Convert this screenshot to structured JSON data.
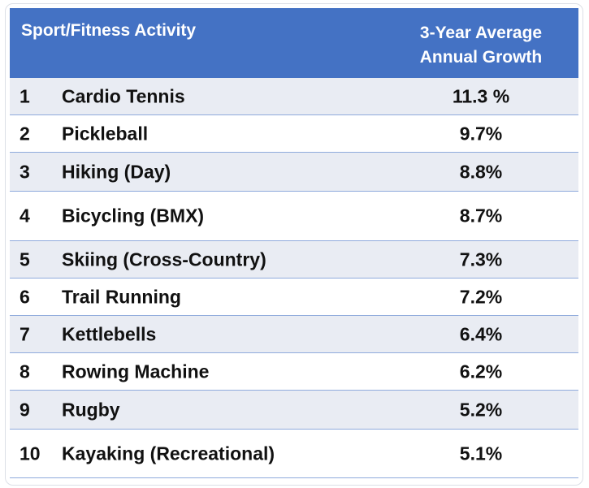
{
  "chart_data": {
    "type": "table",
    "columns": [
      "Sport/Fitness Activity",
      "3-Year Average Annual Growth"
    ],
    "header": {
      "col1": "Sport/Fitness Activity",
      "col2_line1": "3-Year Average",
      "col2_line2": "Annual Growth"
    },
    "rows": [
      {
        "rank": "1",
        "activity": "Cardio Tennis",
        "growth": "11.3 %",
        "value": 11.3
      },
      {
        "rank": "2",
        "activity": "Pickleball",
        "growth": "9.7%",
        "value": 9.7
      },
      {
        "rank": "3",
        "activity": "Hiking (Day)",
        "growth": "8.8%",
        "value": 8.8
      },
      {
        "rank": "4",
        "activity": "Bicycling (BMX)",
        "growth": "8.7%",
        "value": 8.7
      },
      {
        "rank": "5",
        "activity": "Skiing (Cross-Country)",
        "growth": "7.3%",
        "value": 7.3
      },
      {
        "rank": "6",
        "activity": "Trail Running",
        "growth": "7.2%",
        "value": 7.2
      },
      {
        "rank": "7",
        "activity": "Kettlebells",
        "growth": "6.4%",
        "value": 6.4
      },
      {
        "rank": "8",
        "activity": "Rowing Machine",
        "growth": "6.2%",
        "value": 6.2
      },
      {
        "rank": "9",
        "activity": "Rugby",
        "growth": "5.2%",
        "value": 5.2
      },
      {
        "rank": "10",
        "activity": "Kayaking (Recreational)",
        "growth": "5.1%",
        "value": 5.1
      }
    ]
  },
  "colors": {
    "header_bg": "#4472c4",
    "header_text": "#ffffff",
    "row_alt_bg": "#e9ecf3",
    "row_border": "#8faadc"
  }
}
